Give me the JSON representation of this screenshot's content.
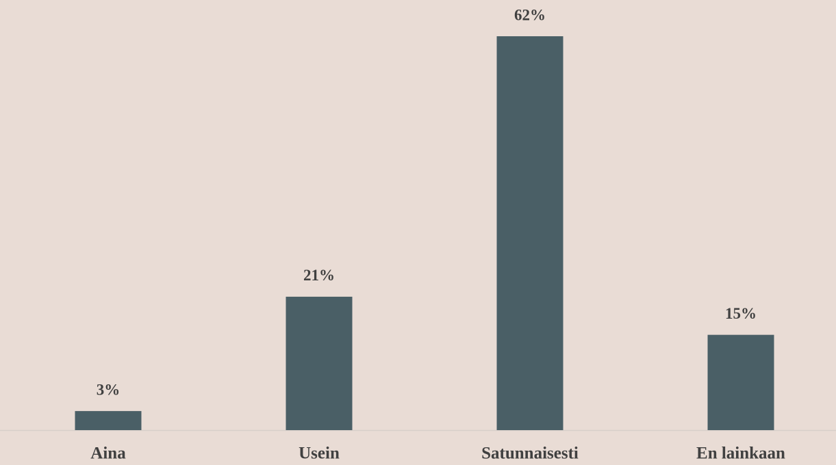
{
  "chart_data": {
    "type": "bar",
    "categories": [
      "Aina",
      "Usein",
      "Satunnaisesti",
      "En lainkaan"
    ],
    "values": [
      3,
      21,
      62,
      15
    ],
    "value_labels": [
      "3%",
      "21%",
      "62%",
      "15%"
    ],
    "color": "#4a5f66"
  }
}
